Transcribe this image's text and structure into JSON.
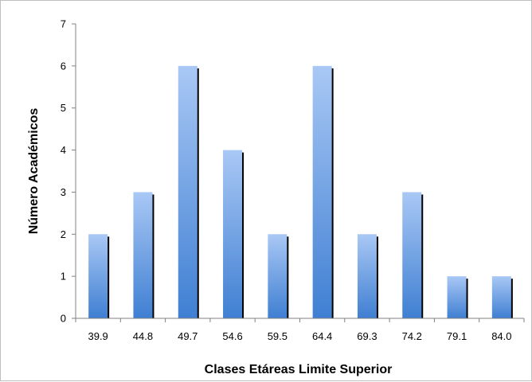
{
  "chart_data": {
    "type": "bar",
    "categories": [
      "39.9",
      "44.8",
      "49.7",
      "54.6",
      "59.5",
      "64.4",
      "69.3",
      "74.2",
      "79.1",
      "84.0"
    ],
    "values": [
      2,
      3,
      6,
      4,
      2,
      6,
      2,
      3,
      1,
      1
    ],
    "xlabel": "Clases Etáreas Limite Superior",
    "ylabel": "Número Académicos",
    "ylim": [
      0,
      7
    ],
    "yticks": [
      "0",
      "1",
      "2",
      "3",
      "4",
      "5",
      "6",
      "7"
    ],
    "grid": false,
    "legend": "none",
    "colors": {
      "bar_top": "#a9c8f5",
      "bar_bottom": "#3f7fd2",
      "bar_shadow": "#000000",
      "axis": "#808080"
    }
  }
}
